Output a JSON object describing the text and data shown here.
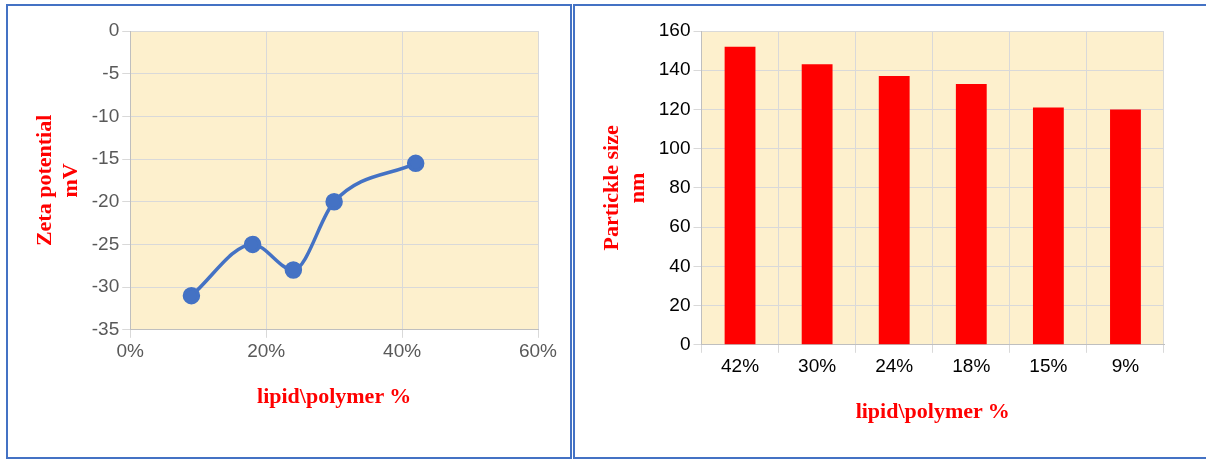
{
  "chart_data": [
    {
      "type": "line",
      "xlabel": "lipid\\polymer %",
      "ylabel": "Zeta potential\nmV",
      "x": [
        0.09,
        0.18,
        0.24,
        0.3,
        0.42
      ],
      "series": [
        {
          "color": "#4472c4",
          "values": [
            -31,
            -25,
            -28,
            -20,
            -15.5
          ]
        }
      ],
      "xlim": [
        0,
        0.6
      ],
      "xticks": [
        {
          "value": 0,
          "label": "0%"
        },
        {
          "value": 0.2,
          "label": "20%"
        },
        {
          "value": 0.4,
          "label": "40%"
        },
        {
          "value": 0.6,
          "label": "60%"
        }
      ],
      "ylim": [
        -35,
        0
      ],
      "yticks": [
        -35,
        -30,
        -25,
        -20,
        -15,
        -10,
        -5,
        0
      ],
      "grid": true,
      "marker": "circle",
      "legend": false
    },
    {
      "type": "bar",
      "xlabel": "lipid\\polymer %",
      "ylabel": "Partickle size\nnm",
      "categories": [
        "42%",
        "30%",
        "24%",
        "18%",
        "15%",
        "9%"
      ],
      "series": [
        {
          "color": "#ff0000",
          "values": [
            152,
            143,
            137,
            133,
            121,
            120
          ]
        }
      ],
      "ylim": [
        0,
        160
      ],
      "yticks": [
        0,
        20,
        40,
        60,
        80,
        100,
        120,
        140,
        160
      ],
      "grid": true,
      "legend": false
    }
  ]
}
